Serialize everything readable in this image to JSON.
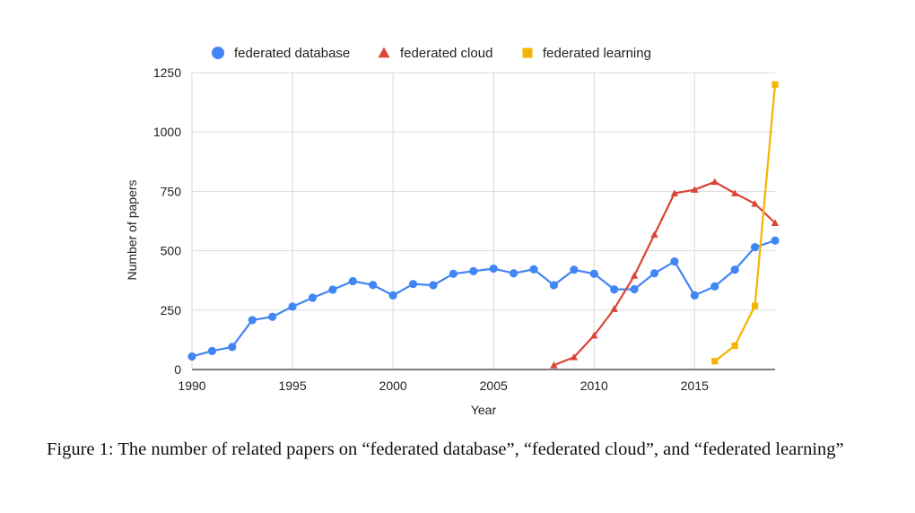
{
  "chart_data": {
    "type": "line",
    "title": "",
    "xlabel": "Year",
    "ylabel": "Number of papers",
    "xlim": [
      1990,
      2019
    ],
    "ylim": [
      0,
      1250
    ],
    "xticks": [
      1990,
      1995,
      2000,
      2005,
      2010,
      2015
    ],
    "yticks": [
      0,
      250,
      500,
      750,
      1000,
      1250
    ],
    "grid": true,
    "legend_position": "top",
    "series": [
      {
        "name": "federated database",
        "color": "#4285f4",
        "marker": "circle",
        "points": [
          [
            1990,
            55
          ],
          [
            1991,
            78
          ],
          [
            1992,
            95
          ],
          [
            1993,
            208
          ],
          [
            1994,
            222
          ],
          [
            1995,
            265
          ],
          [
            1996,
            302
          ],
          [
            1997,
            336
          ],
          [
            1998,
            372
          ],
          [
            1999,
            356
          ],
          [
            2000,
            312
          ],
          [
            2001,
            360
          ],
          [
            2002,
            355
          ],
          [
            2003,
            403
          ],
          [
            2004,
            414
          ],
          [
            2005,
            425
          ],
          [
            2006,
            405
          ],
          [
            2007,
            422
          ],
          [
            2008,
            355
          ],
          [
            2009,
            420
          ],
          [
            2010,
            403
          ],
          [
            2011,
            337
          ],
          [
            2012,
            338
          ],
          [
            2013,
            405
          ],
          [
            2014,
            455
          ],
          [
            2015,
            312
          ],
          [
            2016,
            350
          ],
          [
            2017,
            420
          ],
          [
            2018,
            515
          ],
          [
            2019,
            543
          ]
        ]
      },
      {
        "name": "federated cloud",
        "color": "#db4437",
        "marker": "triangle",
        "points": [
          [
            2008,
            18
          ],
          [
            2009,
            52
          ],
          [
            2010,
            143
          ],
          [
            2011,
            255
          ],
          [
            2012,
            395
          ],
          [
            2013,
            568
          ],
          [
            2014,
            742
          ],
          [
            2015,
            757
          ],
          [
            2016,
            790
          ],
          [
            2017,
            742
          ],
          [
            2018,
            698
          ],
          [
            2019,
            617
          ]
        ]
      },
      {
        "name": "federated learning",
        "color": "#f4b400",
        "marker": "square",
        "points": [
          [
            2016,
            35
          ],
          [
            2017,
            100
          ],
          [
            2018,
            268
          ],
          [
            2019,
            1200
          ]
        ]
      }
    ]
  },
  "caption": "Figure 1: The number of related papers on “federated database”, “federated cloud”, and “federated learning”"
}
